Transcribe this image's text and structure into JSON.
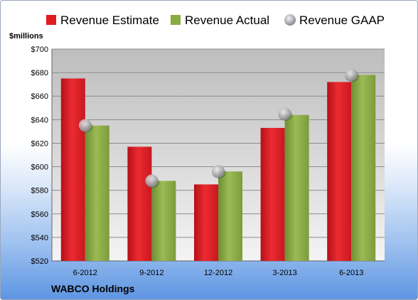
{
  "chart_data": {
    "type": "bar",
    "categories": [
      "6-2012",
      "9-2012",
      "12-2012",
      "3-2013",
      "6-2013"
    ],
    "series": [
      {
        "name": "Revenue Estimate",
        "values": [
          675,
          617,
          585,
          633,
          672
        ],
        "color": "#e01b22",
        "kind": "bar"
      },
      {
        "name": "Revenue Actual",
        "values": [
          635,
          588,
          596,
          644,
          678
        ],
        "color": "#8aaa42",
        "kind": "bar"
      },
      {
        "name": "Revenue GAAP",
        "values": [
          635,
          588,
          596,
          645,
          678
        ],
        "color": "#b8b8bd",
        "kind": "marker"
      }
    ],
    "ylabel": "$millions",
    "ylim": [
      520,
      700
    ],
    "yticks": [
      "$520",
      "$540",
      "$560",
      "$580",
      "$600",
      "$620",
      "$640",
      "$660",
      "$680",
      "$700"
    ],
    "grid": true,
    "legend": "top"
  },
  "footer": {
    "company": "WABCO Holdings"
  }
}
